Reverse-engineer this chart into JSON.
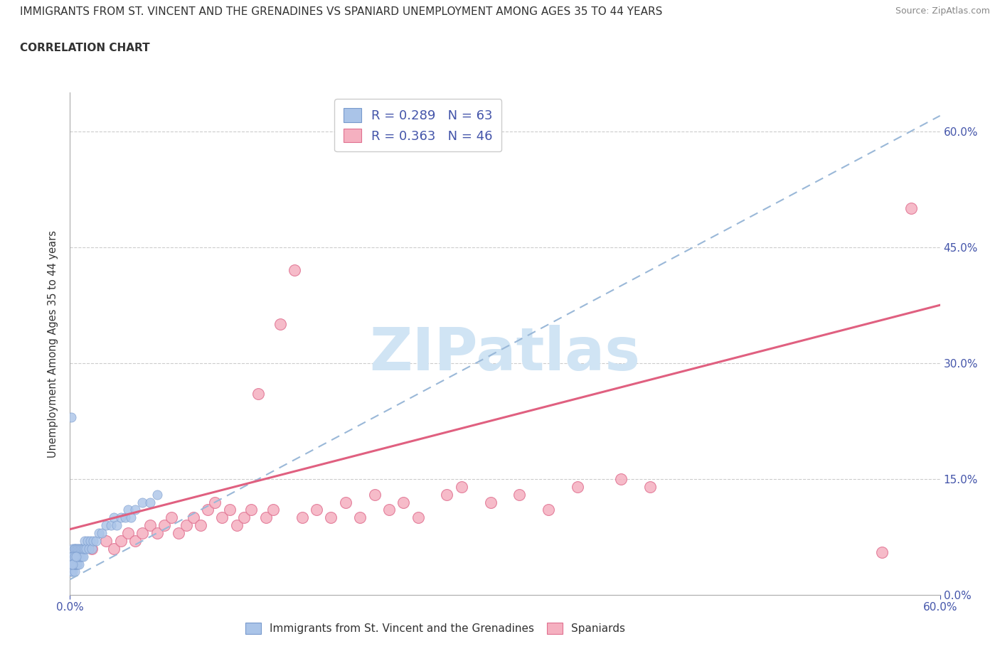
{
  "title": "IMMIGRANTS FROM ST. VINCENT AND THE GRENADINES VS SPANIARD UNEMPLOYMENT AMONG AGES 35 TO 44 YEARS",
  "subtitle": "CORRELATION CHART",
  "source": "Source: ZipAtlas.com",
  "ylabel": "Unemployment Among Ages 35 to 44 years",
  "xlim": [
    0.0,
    0.6
  ],
  "ylim": [
    0.0,
    0.65
  ],
  "ytick_positions": [
    0.0,
    0.15,
    0.3,
    0.45,
    0.6
  ],
  "ytick_labels": [
    "0.0%",
    "15.0%",
    "30.0%",
    "45.0%",
    "60.0%"
  ],
  "r_blue": 0.289,
  "n_blue": 63,
  "r_pink": 0.363,
  "n_pink": 46,
  "blue_dot_color": "#aac4e8",
  "blue_edge_color": "#7799cc",
  "pink_dot_color": "#f5b0c0",
  "pink_edge_color": "#e07090",
  "trend_blue_color": "#9ab8d8",
  "trend_pink_color": "#e06080",
  "watermark": "ZIPatlas",
  "watermark_color": "#d0e4f4",
  "legend_label_blue": "Immigrants from St. Vincent and the Grenadines",
  "legend_label_pink": "Spaniards",
  "blue_scatter_x": [
    0.001,
    0.001,
    0.001,
    0.002,
    0.002,
    0.002,
    0.002,
    0.002,
    0.002,
    0.003,
    0.003,
    0.003,
    0.003,
    0.003,
    0.003,
    0.003,
    0.004,
    0.004,
    0.004,
    0.004,
    0.004,
    0.005,
    0.005,
    0.005,
    0.005,
    0.006,
    0.006,
    0.006,
    0.007,
    0.007,
    0.008,
    0.008,
    0.009,
    0.009,
    0.01,
    0.01,
    0.011,
    0.012,
    0.013,
    0.014,
    0.015,
    0.016,
    0.018,
    0.02,
    0.022,
    0.025,
    0.028,
    0.03,
    0.032,
    0.035,
    0.038,
    0.04,
    0.042,
    0.045,
    0.05,
    0.055,
    0.06,
    0.001,
    0.002,
    0.001,
    0.003,
    0.002,
    0.004
  ],
  "blue_scatter_y": [
    0.03,
    0.04,
    0.05,
    0.03,
    0.04,
    0.05,
    0.06,
    0.04,
    0.05,
    0.03,
    0.04,
    0.05,
    0.06,
    0.04,
    0.05,
    0.06,
    0.04,
    0.05,
    0.06,
    0.04,
    0.05,
    0.04,
    0.05,
    0.06,
    0.05,
    0.04,
    0.05,
    0.06,
    0.05,
    0.06,
    0.05,
    0.06,
    0.05,
    0.06,
    0.06,
    0.07,
    0.06,
    0.07,
    0.06,
    0.07,
    0.06,
    0.07,
    0.07,
    0.08,
    0.08,
    0.09,
    0.09,
    0.1,
    0.09,
    0.1,
    0.1,
    0.11,
    0.1,
    0.11,
    0.12,
    0.12,
    0.13,
    0.23,
    0.05,
    0.04,
    0.05,
    0.04,
    0.05
  ],
  "pink_scatter_x": [
    0.015,
    0.025,
    0.03,
    0.035,
    0.04,
    0.045,
    0.05,
    0.055,
    0.06,
    0.065,
    0.07,
    0.075,
    0.08,
    0.085,
    0.09,
    0.095,
    0.1,
    0.105,
    0.11,
    0.115,
    0.12,
    0.125,
    0.13,
    0.135,
    0.14,
    0.145,
    0.155,
    0.16,
    0.17,
    0.18,
    0.19,
    0.2,
    0.21,
    0.22,
    0.23,
    0.24,
    0.26,
    0.27,
    0.29,
    0.31,
    0.33,
    0.35,
    0.38,
    0.4,
    0.56,
    0.58
  ],
  "pink_scatter_y": [
    0.06,
    0.07,
    0.06,
    0.07,
    0.08,
    0.07,
    0.08,
    0.09,
    0.08,
    0.09,
    0.1,
    0.08,
    0.09,
    0.1,
    0.09,
    0.11,
    0.12,
    0.1,
    0.11,
    0.09,
    0.1,
    0.11,
    0.26,
    0.1,
    0.11,
    0.35,
    0.42,
    0.1,
    0.11,
    0.1,
    0.12,
    0.1,
    0.13,
    0.11,
    0.12,
    0.1,
    0.13,
    0.14,
    0.12,
    0.13,
    0.11,
    0.14,
    0.15,
    0.14,
    0.055,
    0.5
  ],
  "blue_trend_x0": 0.0,
  "blue_trend_y0": 0.02,
  "blue_trend_x1": 0.6,
  "blue_trend_y1": 0.62,
  "pink_trend_x0": 0.0,
  "pink_trend_y0": 0.085,
  "pink_trend_x1": 0.6,
  "pink_trend_y1": 0.375
}
